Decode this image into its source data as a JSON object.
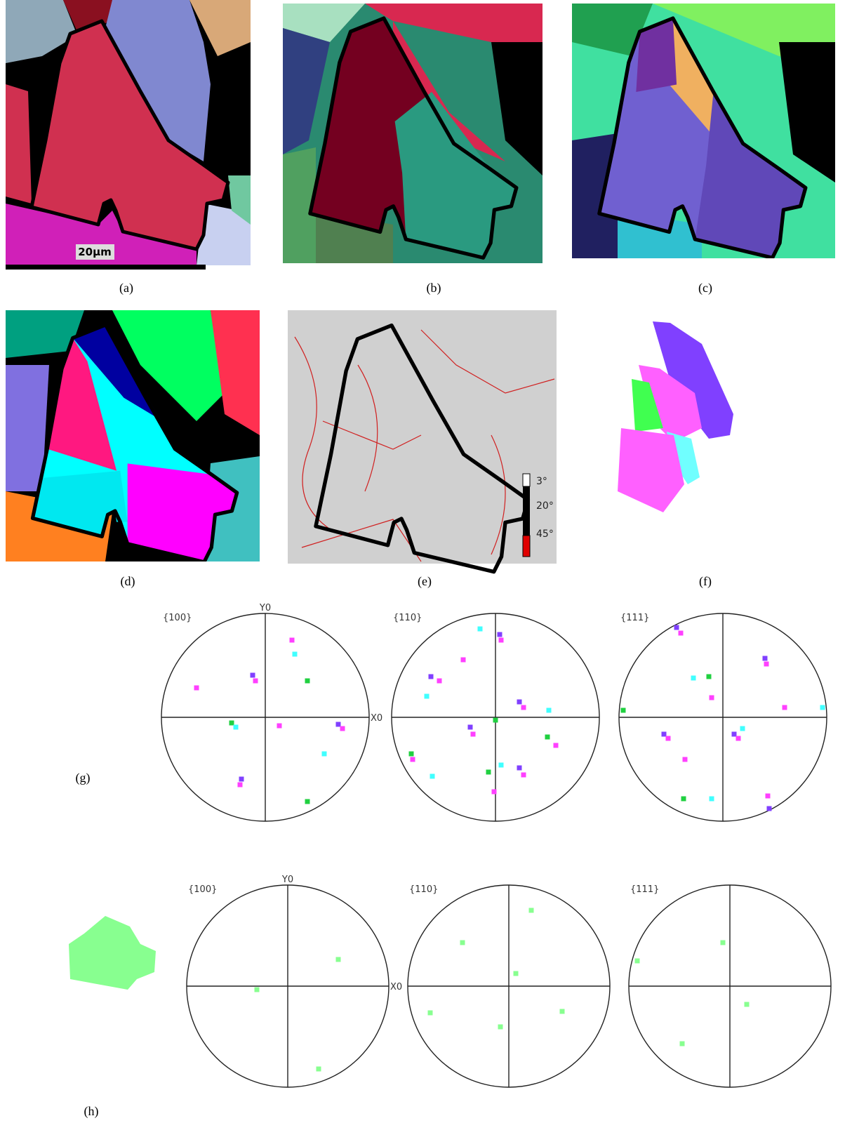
{
  "maps": {
    "a": {
      "label": "(a)",
      "scale_bar": "20μm"
    },
    "b": {
      "label": "(b)"
    },
    "c": {
      "label": "(c)"
    },
    "d": {
      "label": "(d)"
    },
    "e": {
      "label": "(e)",
      "legend": [
        "3°",
        "20°",
        "45°"
      ]
    },
    "f": {
      "label": "(f)"
    }
  },
  "pole_figures": {
    "g": {
      "label": "(g)",
      "figures": [
        {
          "title": "{100}",
          "y_axis": "Y0",
          "x_axis": "X0"
        },
        {
          "title": "{110}"
        },
        {
          "title": "{111}"
        }
      ]
    },
    "h": {
      "label": "(h)",
      "figures": [
        {
          "title": "{100}",
          "y_axis": "Y0",
          "x_axis": "X0"
        },
        {
          "title": "{110}"
        },
        {
          "title": "{111}"
        }
      ]
    }
  }
}
